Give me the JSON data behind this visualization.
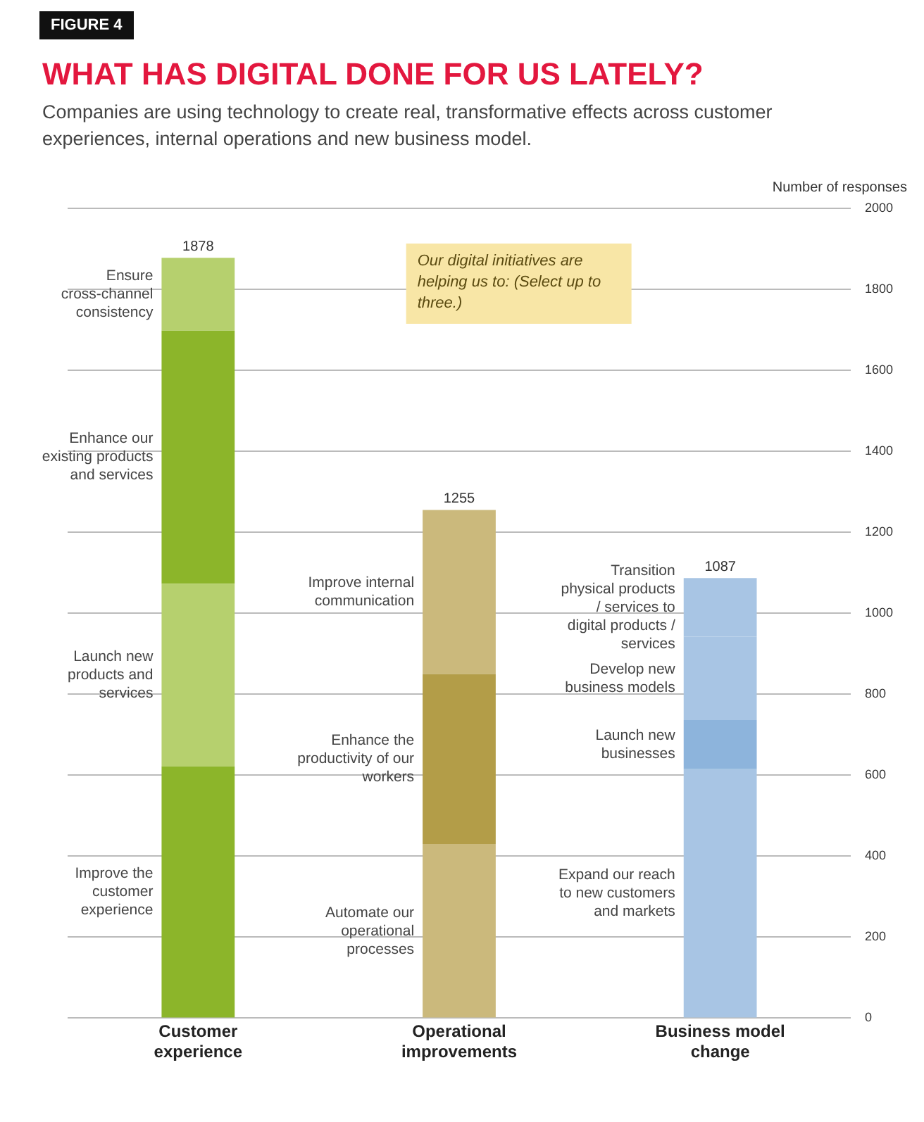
{
  "chart_data": {
    "type": "bar",
    "title": "WHAT HAS DIGITAL DONE FOR US LATELY?",
    "subtitle": "Companies are using technology to create real, transformative effects across customer experiences, internal operations and new business model.",
    "ylabel": "Number of responses",
    "categories": [
      "Customer experience",
      "Operational improvements",
      "Business model change"
    ],
    "stacked": true,
    "series": [
      {
        "colors": [
          "#8cb52a",
          "#cbb97c",
          "#a8c5e4"
        ],
        "values": [
          622,
          430,
          615
        ]
      },
      {
        "colors": [
          "#b6d06e",
          "#b39d48",
          "#8db4dc"
        ],
        "values": [
          451,
          420,
          121
        ]
      },
      {
        "colors": [
          "#8cb52a",
          "#cbb97c",
          "#a8c5e4"
        ],
        "values": [
          625,
          405,
          206
        ]
      },
      {
        "colors": [
          "#b6d06e",
          null,
          "#a8c5e4"
        ],
        "values": [
          180,
          null,
          145
        ]
      }
    ],
    "totals": [
      "1878",
      "1255",
      "1087"
    ],
    "ylim": [
      0,
      2000
    ],
    "yticks": [
      0,
      200,
      400,
      600,
      800,
      1000,
      1200,
      1400,
      1600,
      1800,
      2000
    ],
    "grid": "y",
    "legend": false,
    "annotations": [
      "FIGURE 4",
      "Our digital initiatives are helping us to: (Select up to three.)",
      "Ensure cross-channel consistency",
      "Enhance our existing products and services",
      "Launch new products and services",
      "Improve the customer experience",
      "Improve internal communication",
      "Enhance the productivity of our workers",
      "Automate our operational processes",
      "Transition physical products / services to digital products / services",
      "Develop new business models",
      "Launch new businesses",
      "Expand our reach to new customers and markets"
    ]
  }
}
